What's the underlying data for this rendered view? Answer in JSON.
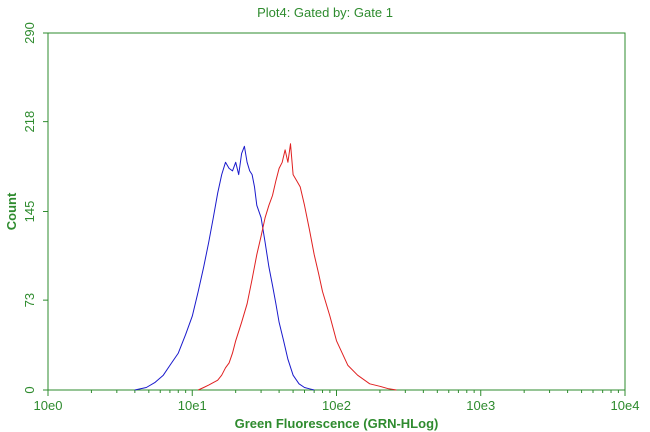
{
  "chart_data": {
    "type": "line",
    "title": "Plot4:  Gated by: Gate 1",
    "xlabel": "Green Fluorescence (GRN-HLog)",
    "ylabel": "Count",
    "x_scale": "log",
    "xlim": [
      1,
      10000
    ],
    "ylim": [
      0,
      290
    ],
    "x_ticks": [
      {
        "label": "10e0",
        "value": 1
      },
      {
        "label": "10e1",
        "value": 10
      },
      {
        "label": "10e2",
        "value": 100
      },
      {
        "label": "10e3",
        "value": 1000
      },
      {
        "label": "10e4",
        "value": 10000
      }
    ],
    "y_ticks": [
      {
        "label": "0",
        "value": 0
      },
      {
        "label": "73",
        "value": 73
      },
      {
        "label": "145",
        "value": 145
      },
      {
        "label": "218",
        "value": 218
      },
      {
        "label": "290",
        "value": 290
      }
    ],
    "grid": false,
    "colors": {
      "axis": "#2e8b2e",
      "series_blue": "#1a1acc",
      "series_red": "#e02020"
    },
    "series": [
      {
        "color": "#1a1acc",
        "x": [
          4.0,
          4.8,
          5.5,
          6.3,
          7.0,
          8.0,
          9.0,
          10.0,
          11.0,
          12.0,
          13.0,
          14.0,
          15.0,
          16.0,
          17.0,
          18.0,
          19.0,
          20.0,
          21.0,
          22.0,
          23.0,
          24.0,
          25.0,
          26.0,
          27.0,
          28.0,
          30.0,
          32.0,
          34.0,
          36.0,
          38.0,
          40.0,
          43.0,
          46.0,
          50.0,
          55.0,
          60.0,
          65.0,
          70.0
        ],
        "y": [
          0,
          2,
          6,
          12,
          20,
          30,
          45,
          60,
          80,
          100,
          120,
          140,
          160,
          175,
          185,
          180,
          178,
          185,
          175,
          192,
          198,
          185,
          178,
          175,
          165,
          150,
          140,
          120,
          100,
          85,
          70,
          55,
          40,
          25,
          12,
          5,
          2,
          1,
          0
        ]
      },
      {
        "color": "#e02020",
        "x": [
          11.0,
          12.0,
          13.0,
          14.0,
          15.0,
          16.0,
          17.0,
          18.0,
          19.0,
          20.0,
          22.0,
          24.0,
          26.0,
          28.0,
          30.0,
          32.0,
          34.0,
          36.0,
          38.0,
          40.0,
          42.0,
          44.0,
          46.0,
          48.0,
          50.0,
          53.0,
          56.0,
          60.0,
          65.0,
          70.0,
          75.0,
          80.0,
          90.0,
          100.0,
          120.0,
          140.0,
          170.0,
          200.0,
          230.0,
          260.0
        ],
        "y": [
          0,
          2,
          4,
          6,
          8,
          12,
          18,
          22,
          30,
          40,
          55,
          70,
          90,
          110,
          125,
          140,
          150,
          158,
          170,
          180,
          185,
          195,
          185,
          200,
          175,
          170,
          165,
          150,
          130,
          110,
          95,
          80,
          60,
          40,
          20,
          12,
          5,
          3,
          1,
          0
        ]
      }
    ]
  }
}
